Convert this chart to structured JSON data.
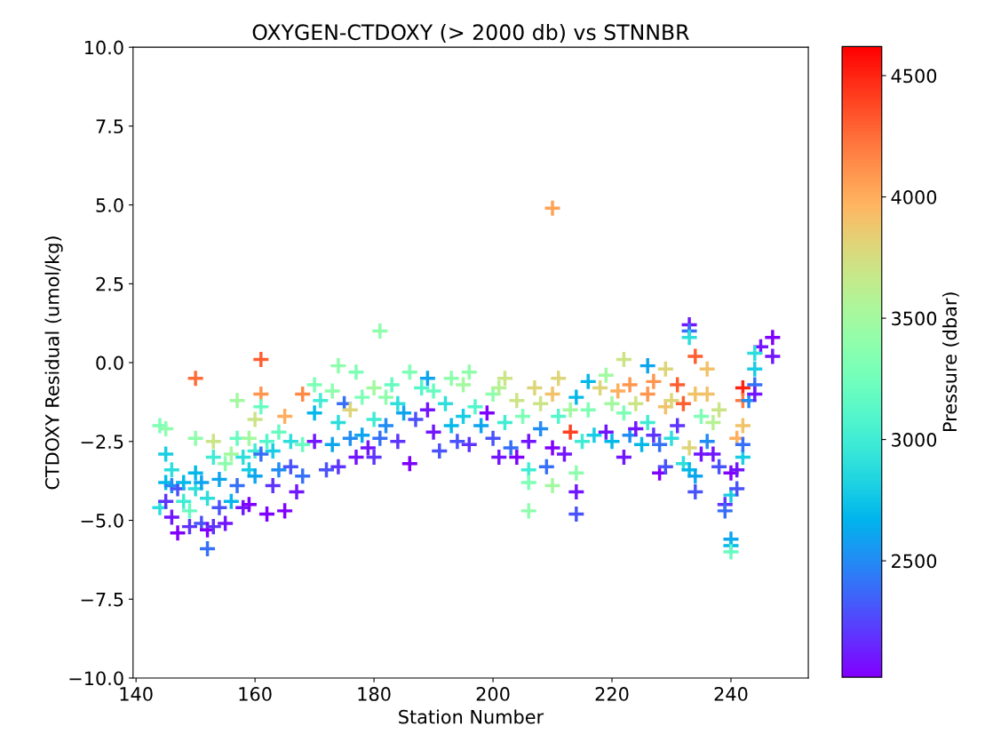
{
  "chart_data": {
    "type": "scatter",
    "title": "OXYGEN-CTDOXY (> 2000 db) vs STNNBR",
    "xlabel": "Station Number",
    "ylabel": "CTDOXY Residual (umol/kg)",
    "clabel": "Pressure (dbar)",
    "marker": "cross",
    "grid": false,
    "legend": false,
    "xlim": [
      139.5,
      253
    ],
    "xticks": [
      140,
      160,
      180,
      200,
      220,
      240
    ],
    "ylim": [
      -10,
      10
    ],
    "yticks": [
      {
        "value": -10,
        "label": "−10.0"
      },
      {
        "value": -7.5,
        "label": "−7.5"
      },
      {
        "value": -5,
        "label": "−5.0"
      },
      {
        "value": -2.5,
        "label": "−2.5"
      },
      {
        "value": 0,
        "label": "0.0"
      },
      {
        "value": 2.5,
        "label": "2.5"
      },
      {
        "value": 5,
        "label": "5.0"
      },
      {
        "value": 7.5,
        "label": "7.5"
      },
      {
        "value": 10,
        "label": "10.0"
      }
    ],
    "clim": [
      2020,
      4620
    ],
    "cticks": [
      2500,
      3000,
      3500,
      4000,
      4500
    ],
    "x": [
      210,
      181,
      150,
      161,
      161,
      233,
      233,
      233,
      234,
      236,
      245,
      247,
      247,
      244,
      244,
      242,
      242,
      240,
      240,
      240,
      152,
      147,
      206,
      214,
      214,
      222,
      226,
      229,
      216,
      144,
      144,
      145,
      145,
      145,
      145,
      146,
      146,
      146,
      147,
      148,
      148,
      149,
      149,
      150,
      150,
      150,
      151,
      151,
      152,
      152,
      153,
      153,
      153,
      154,
      154,
      155,
      155,
      156,
      156,
      157,
      157,
      157,
      158,
      158,
      159,
      159,
      159,
      160,
      160,
      160,
      161,
      161,
      162,
      162,
      163,
      163,
      164,
      164,
      165,
      165,
      166,
      166,
      167,
      168,
      168,
      168,
      170,
      170,
      170,
      171,
      172,
      173,
      173,
      174,
      174,
      174,
      175,
      176,
      176,
      177,
      177,
      178,
      178,
      179,
      180,
      180,
      180,
      181,
      182,
      182,
      183,
      184,
      184,
      185,
      186,
      186,
      187,
      188,
      189,
      189,
      190,
      190,
      191,
      192,
      193,
      193,
      194,
      195,
      195,
      196,
      196,
      197,
      198,
      199,
      200,
      200,
      201,
      201,
      202,
      202,
      203,
      204,
      204,
      205,
      206,
      206,
      206,
      207,
      208,
      208,
      209,
      210,
      210,
      210,
      211,
      211,
      212,
      213,
      213,
      214,
      214,
      215,
      216,
      217,
      218,
      219,
      219,
      220,
      220,
      221,
      222,
      222,
      223,
      223,
      224,
      224,
      225,
      226,
      226,
      227,
      227,
      228,
      228,
      229,
      229,
      230,
      230,
      231,
      231,
      232,
      232,
      233,
      233,
      234,
      234,
      234,
      235,
      235,
      236,
      236,
      237,
      237,
      238,
      238,
      239,
      239,
      240,
      240,
      241,
      241,
      241,
      242,
      242,
      242,
      243,
      244,
      244
    ],
    "values": [
      4.9,
      1.0,
      -0.5,
      0.1,
      -1.0,
      1.2,
      1.0,
      0.8,
      0.2,
      -0.2,
      0.5,
      0.8,
      0.2,
      0.3,
      -0.2,
      -0.8,
      -1.2,
      -5.6,
      -5.8,
      -6.0,
      -5.9,
      -5.4,
      -4.7,
      -4.8,
      -4.1,
      0.1,
      -0.1,
      -0.2,
      -0.6,
      -4.6,
      -2.0,
      -2.1,
      -2.9,
      -3.8,
      -4.4,
      -3.9,
      -4.9,
      -3.4,
      -4.0,
      -4.4,
      -3.8,
      -5.2,
      -4.7,
      -2.4,
      -3.5,
      -4.0,
      -5.1,
      -3.8,
      -4.3,
      -5.3,
      -2.5,
      -3.0,
      -5.2,
      -3.7,
      -4.6,
      -3.2,
      -5.1,
      -2.9,
      -4.4,
      -1.2,
      -2.4,
      -3.9,
      -3.0,
      -4.6,
      -2.4,
      -3.4,
      -4.5,
      -1.8,
      -2.8,
      -3.6,
      -1.4,
      -2.9,
      -4.8,
      -2.5,
      -2.8,
      -3.9,
      -2.2,
      -3.4,
      -1.7,
      -4.7,
      -2.5,
      -3.3,
      -4.1,
      -1.0,
      -2.6,
      -3.6,
      -0.7,
      -1.6,
      -2.5,
      -1.2,
      -3.4,
      -0.9,
      -2.6,
      -0.1,
      -1.9,
      -3.3,
      -1.3,
      -1.5,
      -2.4,
      -0.3,
      -3.0,
      -1.1,
      -2.3,
      -2.7,
      -0.8,
      -1.8,
      -3.0,
      -2.4,
      -1.1,
      -2.0,
      -0.7,
      -1.3,
      -2.5,
      -1.6,
      -0.3,
      -3.2,
      -1.8,
      -0.8,
      -0.5,
      -1.5,
      -0.9,
      -2.2,
      -2.8,
      -1.3,
      -0.5,
      -2.0,
      -2.5,
      -0.7,
      -1.7,
      -0.3,
      -2.6,
      -1.4,
      -2.0,
      -1.6,
      -1.0,
      -2.4,
      -0.8,
      -3.0,
      -0.5,
      -1.9,
      -2.7,
      -1.2,
      -3.0,
      -1.7,
      -3.4,
      -3.8,
      -2.5,
      -0.8,
      -1.3,
      -2.1,
      -3.3,
      -3.9,
      -1.0,
      -2.7,
      -0.5,
      -1.7,
      -2.9,
      -2.2,
      -1.5,
      -3.5,
      -1.1,
      -2.5,
      -1.5,
      -2.3,
      -0.8,
      -0.4,
      -2.2,
      -1.3,
      -2.5,
      -0.9,
      -3.0,
      -1.6,
      -0.7,
      -2.3,
      -1.3,
      -2.1,
      -2.6,
      -1.0,
      -1.9,
      -0.6,
      -2.3,
      -3.5,
      -2.6,
      -1.4,
      -3.3,
      -1.2,
      -2.4,
      -0.7,
      -2.0,
      -1.3,
      -3.2,
      -2.7,
      -3.4,
      -3.6,
      -4.1,
      -1.0,
      -1.7,
      -2.9,
      -1.0,
      -2.5,
      -1.9,
      -2.9,
      -1.5,
      -3.3,
      -4.5,
      -4.7,
      -3.5,
      -4.2,
      -3.4,
      -2.4,
      -4.0,
      -2.0,
      -3.0,
      -2.6,
      -1.2,
      -0.7,
      -1.0
    ],
    "cvalues": [
      4050,
      3400,
      4250,
      4300,
      4100,
      2100,
      2400,
      2900,
      4300,
      3900,
      2100,
      2000,
      2100,
      2900,
      2800,
      4500,
      4200,
      2600,
      2700,
      3200,
      2400,
      2000,
      3400,
      2300,
      2100,
      3700,
      2600,
      3800,
      2700,
      2900,
      3300,
      3400,
      2800,
      2700,
      2200,
      2500,
      2100,
      2900,
      2300,
      3000,
      2700,
      2200,
      3200,
      3400,
      2700,
      2900,
      2300,
      2600,
      2900,
      2000,
      3700,
      3000,
      2200,
      2600,
      2300,
      3400,
      2100,
      3500,
      2700,
      3500,
      3200,
      2400,
      2900,
      2100,
      3500,
      2800,
      2000,
      3700,
      3000,
      2600,
      3200,
      2400,
      2000,
      3100,
      2800,
      2200,
      3200,
      2500,
      4000,
      2000,
      2900,
      2300,
      2100,
      4150,
      3200,
      2400,
      3300,
      2700,
      2100,
      3000,
      2300,
      3400,
      2600,
      3400,
      2900,
      2200,
      2400,
      3800,
      2500,
      3300,
      2100,
      3300,
      2600,
      2100,
      3500,
      3000,
      2200,
      2400,
      3400,
      2500,
      3200,
      2900,
      2200,
      2600,
      3300,
      2000,
      2300,
      3100,
      2600,
      2100,
      3200,
      2100,
      2300,
      2900,
      3400,
      2700,
      2300,
      3500,
      2800,
      3400,
      2200,
      3100,
      2600,
      2000,
      3400,
      2300,
      3600,
      2100,
      3700,
      3000,
      2400,
      3700,
      2000,
      3300,
      3000,
      3300,
      2100,
      3800,
      3700,
      2500,
      2400,
      3500,
      3900,
      2000,
      3800,
      3100,
      2100,
      4400,
      3500,
      3400,
      2700,
      3000,
      3300,
      2800,
      3800,
      3500,
      2100,
      3500,
      2700,
      4000,
      2100,
      3300,
      4100,
      2500,
      3700,
      2100,
      2700,
      4100,
      3000,
      4100,
      2200,
      2000,
      2400,
      3900,
      2300,
      3800,
      2900,
      4300,
      2200,
      4300,
      2900,
      3800,
      2700,
      2600,
      2300,
      3900,
      3300,
      2100,
      3900,
      2500,
      3600,
      2100,
      3700,
      2300,
      2200,
      2400,
      2000,
      2800,
      2100,
      4000,
      2300,
      3900,
      2800,
      2400,
      2500,
      2400,
      2100
    ]
  }
}
